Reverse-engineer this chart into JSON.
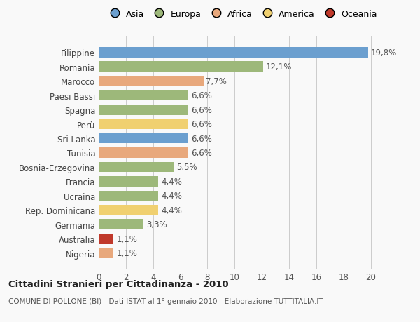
{
  "categories": [
    "Nigeria",
    "Australia",
    "Germania",
    "Rep. Dominicana",
    "Ucraina",
    "Francia",
    "Bosnia-Erzegovina",
    "Tunisia",
    "Sri Lanka",
    "Perù",
    "Spagna",
    "Paesi Bassi",
    "Marocco",
    "Romania",
    "Filippine"
  ],
  "values": [
    1.1,
    1.1,
    3.3,
    4.4,
    4.4,
    4.4,
    5.5,
    6.6,
    6.6,
    6.6,
    6.6,
    6.6,
    7.7,
    12.1,
    19.8
  ],
  "labels": [
    "1,1%",
    "1,1%",
    "3,3%",
    "4,4%",
    "4,4%",
    "4,4%",
    "5,5%",
    "6,6%",
    "6,6%",
    "6,6%",
    "6,6%",
    "6,6%",
    "7,7%",
    "12,1%",
    "19,8%"
  ],
  "colors": [
    "#e8a87c",
    "#c0392b",
    "#9db87a",
    "#f0d070",
    "#9db87a",
    "#9db87a",
    "#9db87a",
    "#e8a87c",
    "#6b9fcf",
    "#f0d070",
    "#9db87a",
    "#9db87a",
    "#e8a87c",
    "#9db87a",
    "#6b9fcf"
  ],
  "legend": [
    {
      "label": "Asia",
      "color": "#6b9fcf"
    },
    {
      "label": "Europa",
      "color": "#9db87a"
    },
    {
      "label": "Africa",
      "color": "#e8a87c"
    },
    {
      "label": "America",
      "color": "#f0d070"
    },
    {
      "label": "Oceania",
      "color": "#c0392b"
    }
  ],
  "title_bold": "Cittadini Stranieri per Cittadinanza - 2010",
  "subtitle": "COMUNE DI POLLONE (BI) - Dati ISTAT al 1° gennaio 2010 - Elaborazione TUTTITALIA.IT",
  "xlim": [
    0,
    21
  ],
  "xticks": [
    0,
    2,
    4,
    6,
    8,
    10,
    12,
    14,
    16,
    18,
    20
  ],
  "background_color": "#f9f9f9",
  "bar_height": 0.72,
  "label_fontsize": 8.5,
  "tick_fontsize": 8.5
}
